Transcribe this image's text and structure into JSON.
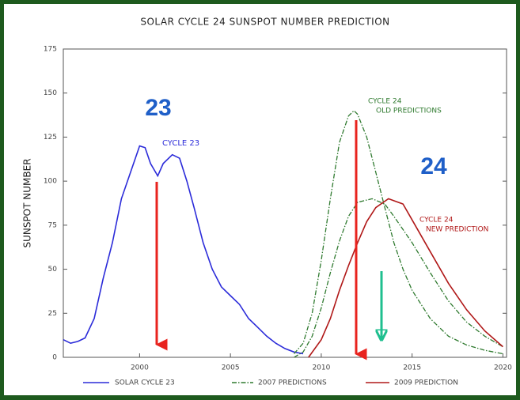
{
  "chart_data": {
    "type": "line",
    "title": "SOLAR CYCLE 24 SUNSPOT NUMBER PREDICTION",
    "y_label": "SUNSPOT NUMBER",
    "xlim": [
      1995.8,
      2020.2
    ],
    "xticks": [
      2000,
      2005,
      2010,
      2015,
      2020
    ],
    "ylim": [
      0,
      175
    ],
    "yticks": [
      0,
      25,
      50,
      75,
      100,
      125,
      150,
      175
    ],
    "series": [
      {
        "name": "SOLAR CYCLE 23",
        "color": "#2b2bd9",
        "style": "solid",
        "x": [
          1995.8,
          1996.2,
          1996.6,
          1997,
          1997.5,
          1998,
          1998.5,
          1999,
          1999.5,
          2000,
          2000.3,
          2000.6,
          2001,
          2001.3,
          2001.8,
          2002.2,
          2002.6,
          2003,
          2003.5,
          2004,
          2004.5,
          2005,
          2005.5,
          2006,
          2006.5,
          2007,
          2007.5,
          2008,
          2008.5,
          2009
        ],
        "values": [
          10,
          8,
          9,
          11,
          22,
          45,
          65,
          90,
          105,
          120,
          119,
          110,
          103,
          110,
          115,
          113,
          100,
          85,
          65,
          50,
          40,
          35,
          30,
          22,
          17,
          12,
          8,
          5,
          3,
          2
        ]
      },
      {
        "color": "#2f7a2f",
        "style": "dashdot",
        "x": [
          2008.5,
          2009,
          2009.5,
          2010,
          2010.5,
          2011,
          2011.5,
          2011.8,
          2012,
          2012.5,
          2013,
          2013.5,
          2014,
          2014.5,
          2015,
          2016,
          2017,
          2018,
          2019,
          2020
        ],
        "values": [
          2,
          8,
          25,
          55,
          90,
          122,
          137,
          140,
          138,
          125,
          105,
          85,
          65,
          50,
          38,
          22,
          12,
          7,
          4,
          2
        ]
      },
      {
        "name": "2007 PREDICTIONS",
        "color": "#2f7a2f",
        "style": "dashdot",
        "x": [
          2008.5,
          2009,
          2009.5,
          2010,
          2010.5,
          2011,
          2011.5,
          2012,
          2012.8,
          2013.5,
          2014,
          2015,
          2016,
          2017,
          2018,
          2019,
          2020
        ],
        "values": [
          0,
          3,
          12,
          28,
          48,
          66,
          80,
          88,
          90,
          87,
          80,
          65,
          48,
          32,
          20,
          12,
          6
        ]
      },
      {
        "name": "2009 PREDICTION",
        "color": "#b01818",
        "style": "solid",
        "x": [
          2009.3,
          2010,
          2010.5,
          2011,
          2011.5,
          2012,
          2012.5,
          2013,
          2013.7,
          2014.5,
          2015,
          2016,
          2017,
          2018,
          2019,
          2020
        ],
        "values": [
          0,
          10,
          22,
          38,
          52,
          65,
          77,
          85,
          90,
          87,
          78,
          60,
          42,
          27,
          15,
          6
        ]
      }
    ],
    "annotations": [
      {
        "text": "23",
        "color": "#1f5fc8"
      },
      {
        "text": "CYCLE 23",
        "color": "#2b2bd9"
      },
      {
        "text": "CYCLE 24",
        "color": "#2f7a2f"
      },
      {
        "text": "OLD PREDICTIONS",
        "color": "#2f7a2f"
      },
      {
        "text": "24",
        "color": "#1f5fc8"
      },
      {
        "text": "CYCLE 24",
        "color": "#b01818"
      },
      {
        "text": "NEW PREDICTION",
        "color": "#b01818"
      }
    ]
  }
}
